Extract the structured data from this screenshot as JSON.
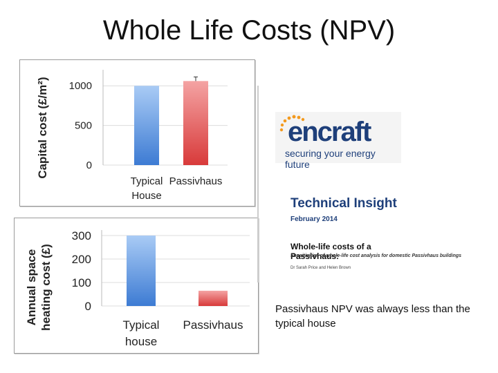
{
  "slide": {
    "title": "Whole Life Costs (NPV)"
  },
  "chart_data": [
    {
      "type": "bar",
      "title": "",
      "ylabel": "Capital cost (£/m²)",
      "xlabel": "",
      "categories": [
        "Typical House",
        "Passivhaus"
      ],
      "values": [
        1000,
        1060
      ],
      "error_bar_on": [
        "Passivhaus"
      ],
      "yticks": [
        0,
        500,
        1000
      ],
      "ylim": [
        0,
        1150
      ],
      "grid": true,
      "colors": [
        "#4a86d8",
        "#e04848"
      ]
    },
    {
      "type": "bar",
      "title": "",
      "ylabel": "Annual space heating cost (£)",
      "xlabel": "",
      "categories": [
        "Typical house",
        "Passivhaus"
      ],
      "values": [
        300,
        65
      ],
      "yticks": [
        0,
        100,
        200,
        300
      ],
      "ylim": [
        0,
        300
      ],
      "grid": true,
      "colors": [
        "#4a86d8",
        "#e04848"
      ]
    }
  ],
  "logo": {
    "name": "encraft",
    "tagline": "securing your energy future",
    "color": "#1e3f7a",
    "dot_color": "#f39a1e"
  },
  "report": {
    "heading": "Technical Insight",
    "date": "February 2014",
    "title": "Whole-life costs of a Passivhaus:",
    "subtitle": "Sensitivities of whole-life cost analysis for domestic Passivhaus buildings",
    "authors": "Dr Sarah Price and Helen Brown"
  },
  "caption": "Passivhaus NPV was always less than the typical house"
}
